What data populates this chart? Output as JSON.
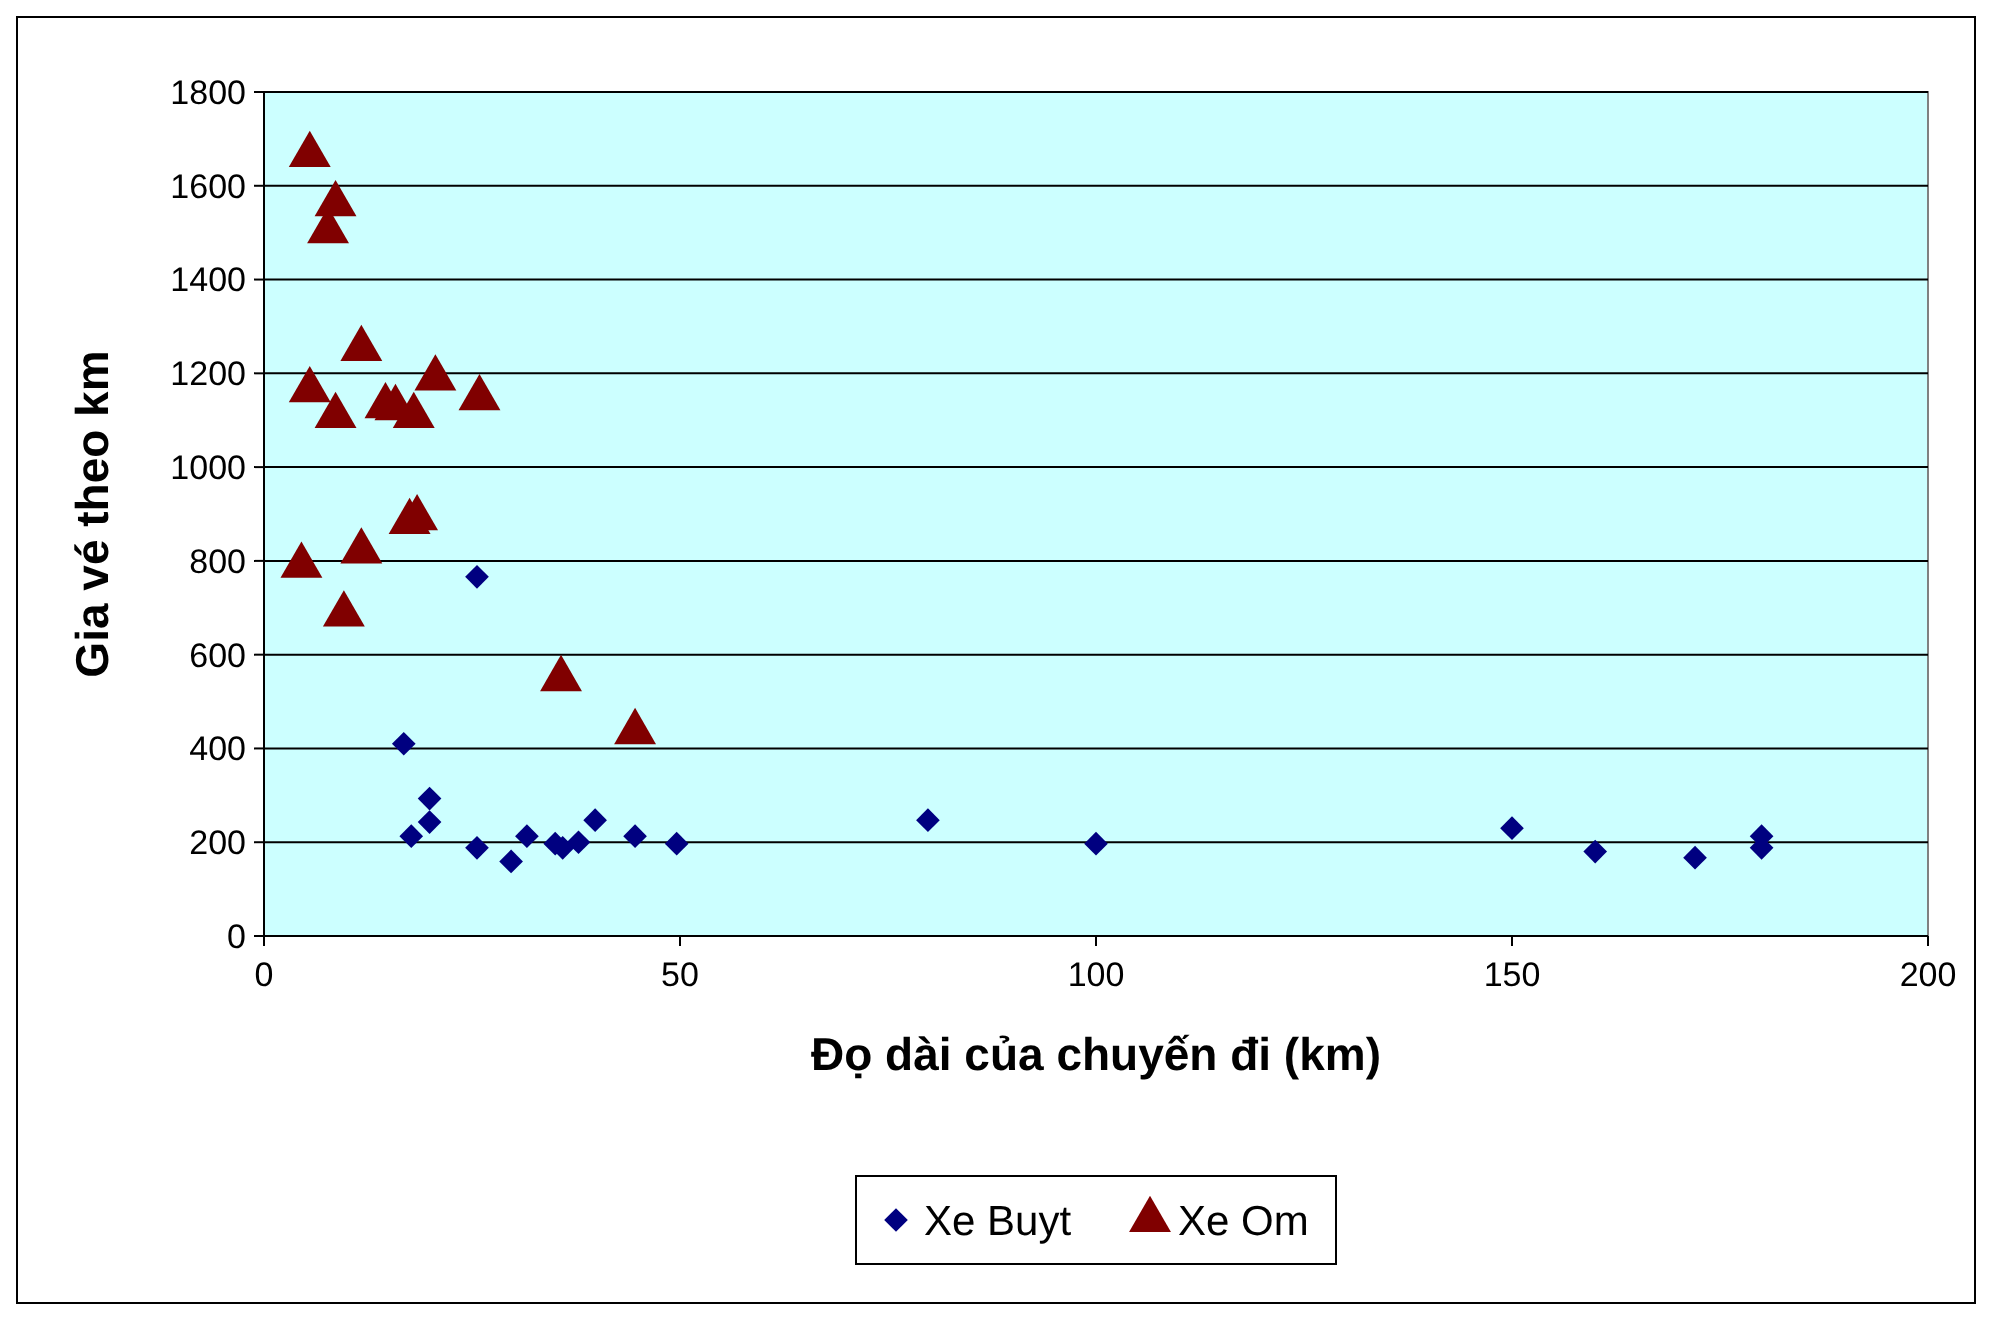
{
  "chart_data": {
    "type": "scatter",
    "xlabel": "Đọ dài của chuyến đi (km)",
    "ylabel": "Gia vé theo km",
    "xlim": [
      0,
      200
    ],
    "xticks": [
      0,
      50,
      100,
      150,
      200
    ],
    "ylim": [
      0,
      1800
    ],
    "yticks": [
      0,
      200,
      400,
      600,
      800,
      1000,
      1200,
      1400,
      1600,
      1800
    ],
    "grid": "y",
    "legend": "bottom",
    "series": [
      {
        "name": "Xe Buyt",
        "color": "#000080",
        "marker": "diamond",
        "x": [
          16.8,
          17.7,
          19.9,
          19.9,
          25.6,
          25.6,
          29.7,
          31.6,
          35,
          35.9,
          37.8,
          39.8,
          44.6,
          49.6,
          79.8,
          100,
          150,
          160,
          172,
          180,
          180
        ],
        "values": [
          410,
          213,
          293,
          243,
          766,
          188,
          159,
          213,
          197,
          188,
          200,
          247,
          213,
          197,
          247,
          197,
          230,
          180,
          167,
          213,
          188
        ]
      },
      {
        "name": "Xe Om",
        "color": "#800000",
        "marker": "triangle",
        "x": [
          5.5,
          8.6,
          7.7,
          11.7,
          5.5,
          8.6,
          14.6,
          15.8,
          18,
          20.6,
          25.9,
          17.5,
          18.4,
          11.7,
          4.5,
          9.6,
          35.7,
          44.6
        ],
        "values": [
          1666,
          1561,
          1503,
          1252,
          1164,
          1109,
          1130,
          1126,
          1109,
          1189,
          1147,
          883,
          891,
          820,
          790,
          686,
          548,
          435
        ]
      }
    ]
  }
}
